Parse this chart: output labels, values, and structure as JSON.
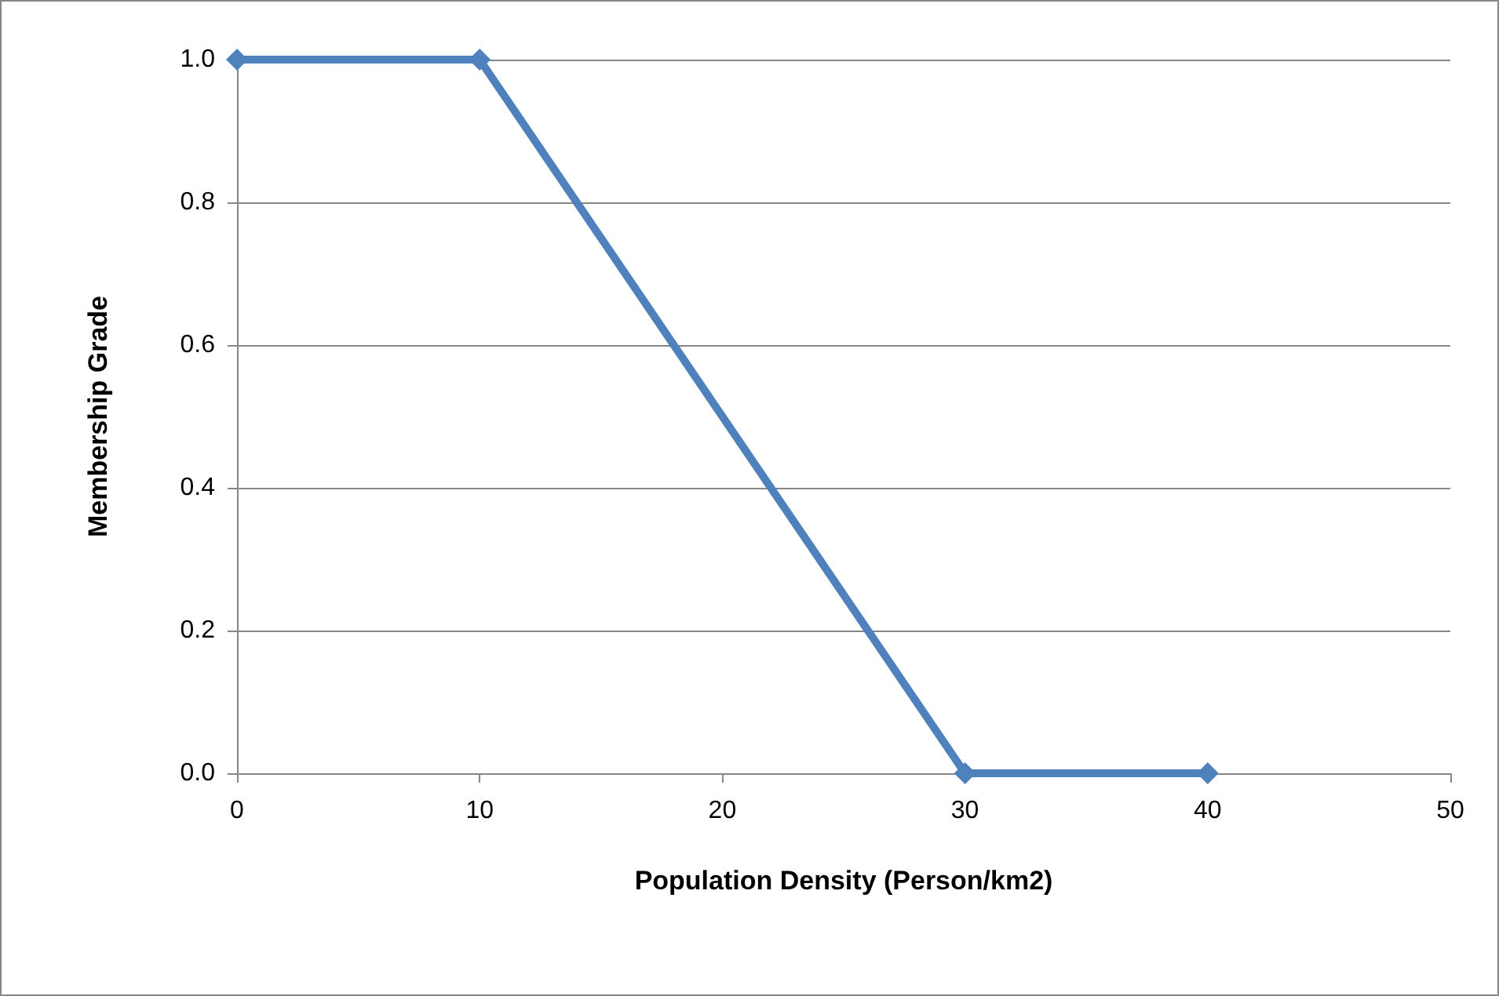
{
  "chart_data": {
    "type": "line",
    "xlabel": "Population Density (Person/km2)",
    "ylabel": "Membership Grade",
    "x": [
      0,
      10,
      30,
      40
    ],
    "series": [
      {
        "color": "#4f81bd",
        "values": [
          1,
          1,
          0,
          0
        ]
      }
    ],
    "xlim": [
      0,
      50
    ],
    "xticks": [
      0,
      10,
      20,
      30,
      40,
      50
    ],
    "ylim": [
      0,
      1
    ],
    "yticks": [
      {
        "value": 0,
        "label": "0.0"
      },
      {
        "value": 0.2,
        "label": "0.2"
      },
      {
        "value": 0.4,
        "label": "0.4"
      },
      {
        "value": 0.6,
        "label": "0.6"
      },
      {
        "value": 0.8,
        "label": "0.8"
      },
      {
        "value": 1,
        "label": "1.0"
      }
    ],
    "grid": "y",
    "marker": "diamond",
    "line_style": "solid"
  }
}
